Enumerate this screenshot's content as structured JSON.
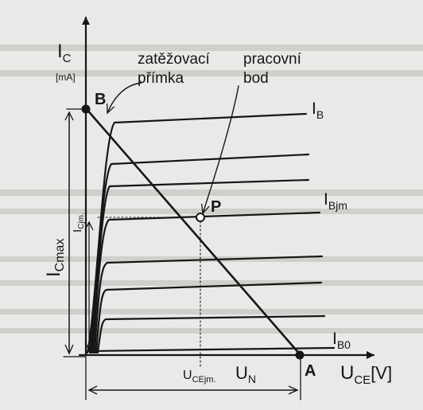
{
  "figure": {
    "axis_y": {
      "symbol": "I",
      "sub": "C",
      "unit": "[mA]"
    },
    "axis_x": {
      "symbol": "U",
      "sub": "CE",
      "unit": "[V]"
    },
    "label_load_line": {
      "line1": "zatěžovací",
      "line2": "přímka"
    },
    "label_operating_point": {
      "line1": "pracovní",
      "line2": "bod"
    },
    "point_B": "B",
    "point_A": "A",
    "point_P": "P",
    "curve_IB": {
      "symbol": "I",
      "sub": "B"
    },
    "curve_IBjm": {
      "symbol": "I",
      "sub": "Bjm"
    },
    "curve_IB0": {
      "symbol": "I",
      "sub": "B0"
    },
    "dim_Icmax": {
      "symbol": "I",
      "sub": "Cmax"
    },
    "dim_Icjm": {
      "symbol": "I",
      "sub": "Cjm."
    },
    "dim_Ucejm": {
      "symbol": "U",
      "sub": "CEjm."
    },
    "dim_UN": {
      "symbol": "U",
      "sub": "N"
    },
    "colors": {
      "ink": "#161616",
      "paper": "#e9e9e7",
      "ghost": "#cfcfcc"
    }
  }
}
